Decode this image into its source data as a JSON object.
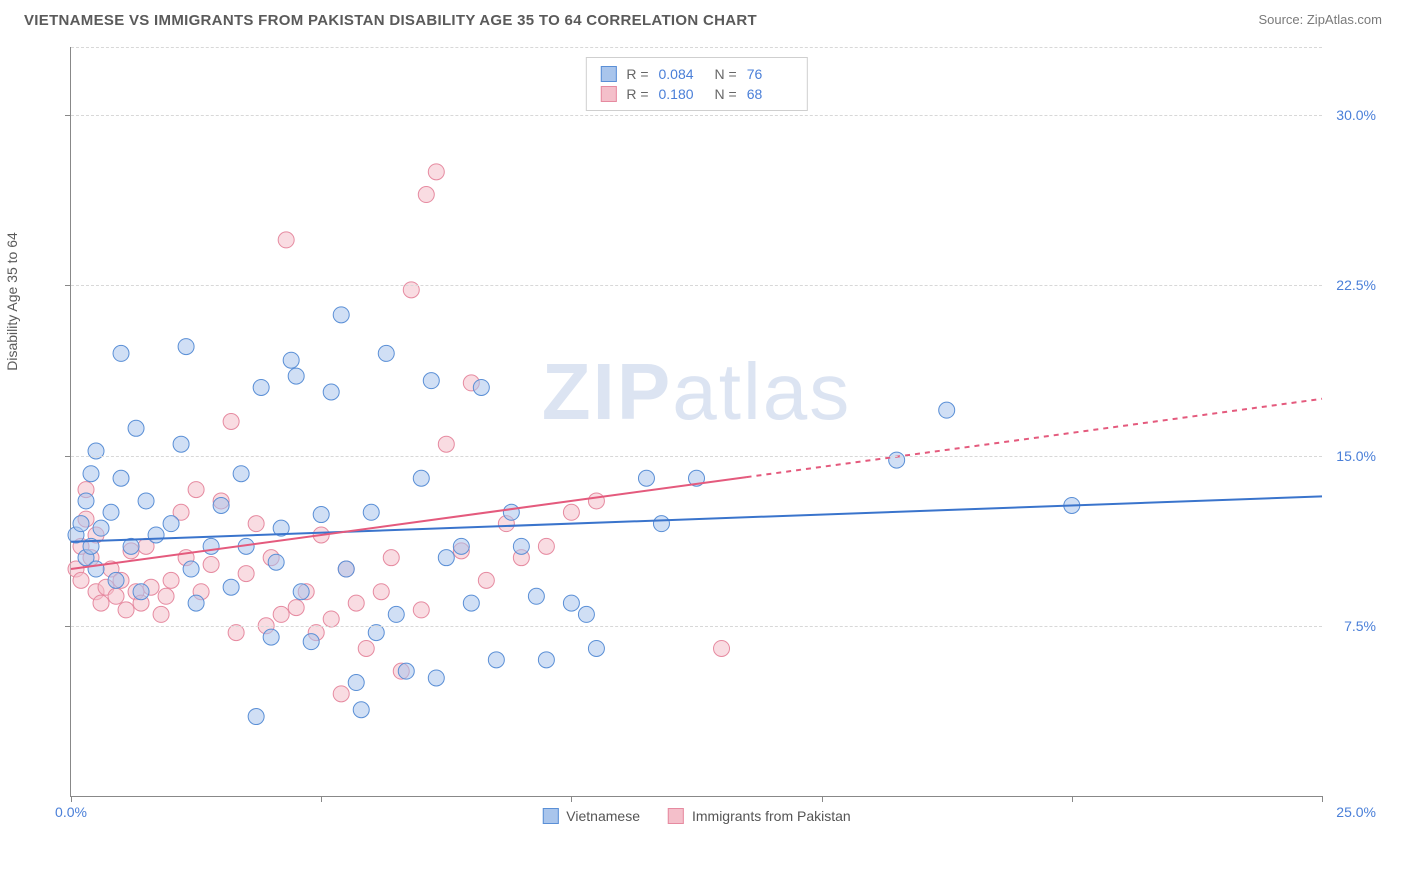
{
  "header": {
    "title": "VIETNAMESE VS IMMIGRANTS FROM PAKISTAN DISABILITY AGE 35 TO 64 CORRELATION CHART",
    "source_label": "Source: ",
    "source_name": "ZipAtlas.com"
  },
  "watermark": {
    "bold": "ZIP",
    "light": "atlas"
  },
  "chart": {
    "type": "scatter-correlation",
    "y_axis_label": "Disability Age 35 to 64",
    "xlim": [
      0,
      25
    ],
    "ylim": [
      0,
      33
    ],
    "x_ticks": [
      0,
      5,
      10,
      15,
      20,
      25
    ],
    "x_tick_labels": {
      "min": "0.0%",
      "max": "25.0%"
    },
    "y_gridlines": [
      7.5,
      15.0,
      22.5,
      30.0
    ],
    "y_tick_labels": [
      "7.5%",
      "15.0%",
      "22.5%",
      "30.0%"
    ],
    "background_color": "#ffffff",
    "grid_color": "#d8d8d8",
    "axis_color": "#888888",
    "tick_label_color": "#4a7fd8",
    "watermark_color": "#dce4f2",
    "point_radius": 8,
    "point_opacity": 0.55,
    "line_width": 2,
    "dash_pattern": "5,5"
  },
  "series": {
    "a": {
      "label": "Vietnamese",
      "color_fill": "#a9c5ec",
      "color_stroke": "#5a8fd6",
      "line_color": "#3a74cc",
      "r_value": "0.084",
      "n_value": "76",
      "trend": {
        "x1": 0,
        "y1": 11.2,
        "x2": 25,
        "y2": 13.2,
        "solid_until_x": 25
      },
      "points": [
        [
          0.1,
          11.5
        ],
        [
          0.2,
          12.0
        ],
        [
          0.3,
          10.5
        ],
        [
          0.3,
          13.0
        ],
        [
          0.4,
          11.0
        ],
        [
          0.4,
          14.2
        ],
        [
          0.5,
          15.2
        ],
        [
          0.5,
          10.0
        ],
        [
          0.6,
          11.8
        ],
        [
          0.8,
          12.5
        ],
        [
          0.9,
          9.5
        ],
        [
          1.0,
          14.0
        ],
        [
          1.0,
          19.5
        ],
        [
          1.2,
          11.0
        ],
        [
          1.3,
          16.2
        ],
        [
          1.4,
          9.0
        ],
        [
          1.5,
          13.0
        ],
        [
          1.7,
          11.5
        ],
        [
          2.0,
          12.0
        ],
        [
          2.2,
          15.5
        ],
        [
          2.3,
          19.8
        ],
        [
          2.4,
          10.0
        ],
        [
          2.5,
          8.5
        ],
        [
          2.8,
          11.0
        ],
        [
          3.0,
          12.8
        ],
        [
          3.2,
          9.2
        ],
        [
          3.4,
          14.2
        ],
        [
          3.5,
          11.0
        ],
        [
          3.7,
          3.5
        ],
        [
          3.8,
          18.0
        ],
        [
          4.0,
          7.0
        ],
        [
          4.1,
          10.3
        ],
        [
          4.2,
          11.8
        ],
        [
          4.4,
          19.2
        ],
        [
          4.5,
          18.5
        ],
        [
          4.6,
          9.0
        ],
        [
          4.8,
          6.8
        ],
        [
          5.0,
          12.4
        ],
        [
          5.2,
          17.8
        ],
        [
          5.4,
          21.2
        ],
        [
          5.5,
          10.0
        ],
        [
          5.7,
          5.0
        ],
        [
          5.8,
          3.8
        ],
        [
          6.0,
          12.5
        ],
        [
          6.1,
          7.2
        ],
        [
          6.3,
          19.5
        ],
        [
          6.5,
          8.0
        ],
        [
          6.7,
          5.5
        ],
        [
          7.0,
          14.0
        ],
        [
          7.2,
          18.3
        ],
        [
          7.3,
          5.2
        ],
        [
          7.5,
          10.5
        ],
        [
          7.8,
          11.0
        ],
        [
          8.0,
          8.5
        ],
        [
          8.2,
          18.0
        ],
        [
          8.5,
          6.0
        ],
        [
          8.8,
          12.5
        ],
        [
          9.0,
          11.0
        ],
        [
          9.3,
          8.8
        ],
        [
          9.5,
          6.0
        ],
        [
          10.0,
          8.5
        ],
        [
          10.3,
          8.0
        ],
        [
          10.5,
          6.5
        ],
        [
          11.5,
          14.0
        ],
        [
          11.8,
          12.0
        ],
        [
          12.5,
          14.0
        ],
        [
          16.5,
          14.8
        ],
        [
          17.5,
          17.0
        ],
        [
          20.0,
          12.8
        ]
      ]
    },
    "b": {
      "label": "Immigrants from Pakistan",
      "color_fill": "#f4bfca",
      "color_stroke": "#e68aa0",
      "line_color": "#e45a7d",
      "r_value": "0.180",
      "n_value": "68",
      "trend": {
        "x1": 0,
        "y1": 10.0,
        "x2": 25,
        "y2": 17.5,
        "solid_until_x": 13.5
      },
      "points": [
        [
          0.1,
          10.0
        ],
        [
          0.2,
          9.5
        ],
        [
          0.2,
          11.0
        ],
        [
          0.3,
          12.2
        ],
        [
          0.3,
          13.5
        ],
        [
          0.4,
          10.5
        ],
        [
          0.5,
          9.0
        ],
        [
          0.5,
          11.5
        ],
        [
          0.6,
          8.5
        ],
        [
          0.7,
          9.2
        ],
        [
          0.8,
          10.0
        ],
        [
          0.9,
          8.8
        ],
        [
          1.0,
          9.5
        ],
        [
          1.1,
          8.2
        ],
        [
          1.2,
          10.8
        ],
        [
          1.3,
          9.0
        ],
        [
          1.4,
          8.5
        ],
        [
          1.5,
          11.0
        ],
        [
          1.6,
          9.2
        ],
        [
          1.8,
          8.0
        ],
        [
          1.9,
          8.8
        ],
        [
          2.0,
          9.5
        ],
        [
          2.2,
          12.5
        ],
        [
          2.3,
          10.5
        ],
        [
          2.5,
          13.5
        ],
        [
          2.6,
          9.0
        ],
        [
          2.8,
          10.2
        ],
        [
          3.0,
          13.0
        ],
        [
          3.2,
          16.5
        ],
        [
          3.3,
          7.2
        ],
        [
          3.5,
          9.8
        ],
        [
          3.7,
          12.0
        ],
        [
          3.9,
          7.5
        ],
        [
          4.0,
          10.5
        ],
        [
          4.2,
          8.0
        ],
        [
          4.3,
          24.5
        ],
        [
          4.5,
          8.3
        ],
        [
          4.7,
          9.0
        ],
        [
          4.9,
          7.2
        ],
        [
          5.0,
          11.5
        ],
        [
          5.2,
          7.8
        ],
        [
          5.4,
          4.5
        ],
        [
          5.5,
          10.0
        ],
        [
          5.7,
          8.5
        ],
        [
          5.9,
          6.5
        ],
        [
          6.2,
          9.0
        ],
        [
          6.4,
          10.5
        ],
        [
          6.6,
          5.5
        ],
        [
          6.8,
          22.3
        ],
        [
          7.0,
          8.2
        ],
        [
          7.1,
          26.5
        ],
        [
          7.3,
          27.5
        ],
        [
          7.5,
          15.5
        ],
        [
          7.8,
          10.8
        ],
        [
          8.0,
          18.2
        ],
        [
          8.3,
          9.5
        ],
        [
          8.7,
          12.0
        ],
        [
          9.0,
          10.5
        ],
        [
          9.5,
          11.0
        ],
        [
          10.0,
          12.5
        ],
        [
          10.5,
          13.0
        ],
        [
          13.0,
          6.5
        ]
      ]
    }
  },
  "stat_box": {
    "r_label": "R =",
    "n_label": "N ="
  }
}
